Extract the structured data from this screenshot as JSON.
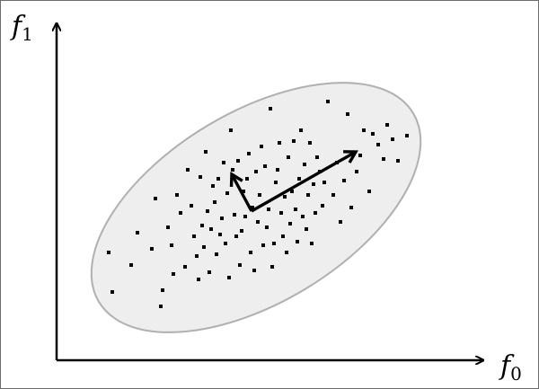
{
  "axes": {
    "x_label": "f",
    "x_subscript": "0",
    "y_label": "f",
    "y_subscript": "1"
  },
  "colors": {
    "axis": "#000000",
    "ellipse_fill": "#eeeeee",
    "ellipse_stroke": "#b0b0b0",
    "points": "#000000",
    "vectors": "#000000"
  },
  "chart_data": {
    "type": "scatter",
    "x": [
      120,
      124,
      145,
      152,
      168,
      172,
      178,
      180,
      186,
      190,
      192,
      196,
      200,
      205,
      208,
      212,
      215,
      218,
      220,
      222,
      224,
      226,
      228,
      230,
      232,
      234,
      236,
      238,
      240,
      242,
      244,
      246,
      248,
      250,
      252,
      254,
      256,
      258,
      260,
      262,
      264,
      266,
      268,
      270,
      272,
      274,
      276,
      278,
      280,
      282,
      284,
      286,
      288,
      290,
      292,
      294,
      296,
      298,
      300,
      302,
      304,
      306,
      308,
      310,
      312,
      314,
      316,
      318,
      320,
      322,
      324,
      326,
      328,
      330,
      332,
      334,
      336,
      338,
      340,
      342,
      344,
      346,
      348,
      350,
      352,
      355,
      358,
      360,
      364,
      370,
      374,
      378,
      382,
      386,
      390,
      396,
      400,
      404,
      410,
      414,
      420,
      426,
      430,
      436,
      442,
      452
    ],
    "y": [
      280,
      324,
      294,
      258,
      276,
      220,
      340,
      322,
      252,
      272,
      304,
      216,
      236,
      296,
      188,
      228,
      262,
      284,
      310,
      196,
      250,
      274,
      168,
      234,
      302,
      254,
      206,
      224,
      282,
      198,
      260,
      242,
      180,
      270,
      214,
      308,
      144,
      188,
      238,
      262,
      178,
      294,
      256,
      212,
      240,
      198,
      170,
      280,
      230,
      300,
      190,
      246,
      216,
      162,
      272,
      184,
      252,
      232,
      120,
      296,
      270,
      202,
      188,
      158,
      236,
      262,
      218,
      280,
      174,
      248,
      212,
      156,
      232,
      268,
      198,
      144,
      240,
      182,
      254,
      216,
      158,
      270,
      204,
      236,
      174,
      190,
      228,
      202,
      112,
      216,
      180,
      246,
      200,
      126,
      230,
      190,
      172,
      144,
      212,
      148,
      160,
      176,
      138,
      154,
      178,
      150
    ]
  }
}
